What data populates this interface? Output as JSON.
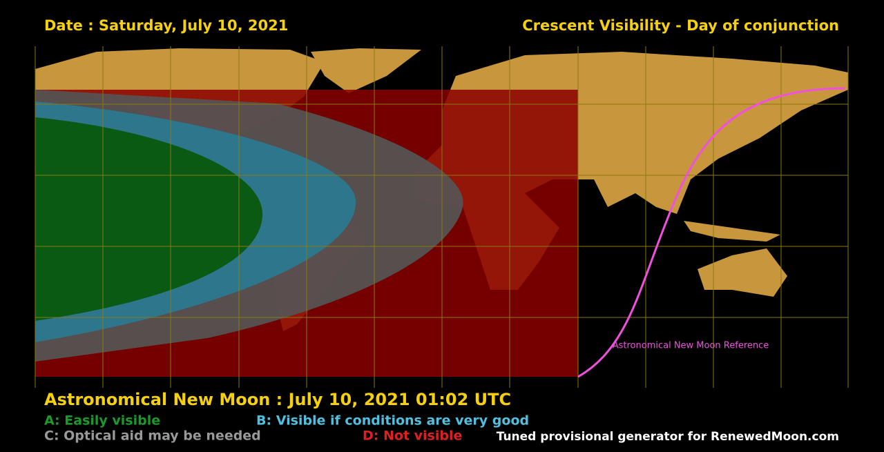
{
  "header": {
    "date": "Date : Saturday, July 10, 2021",
    "title": "Crescent Visibility - Day of conjunction"
  },
  "map": {
    "reference_label": "Astronomical New Moon Reference"
  },
  "footer": {
    "new_moon": "Astronomical New Moon : July 10, 2021 01:02 UTC",
    "legend": [
      "A: Easily visible",
      "B: Visible if conditions are very good",
      "C: Optical aid may be needed",
      "D: Not visible"
    ],
    "credit": "Tuned provisional generator for RenewedMoon.com"
  }
}
